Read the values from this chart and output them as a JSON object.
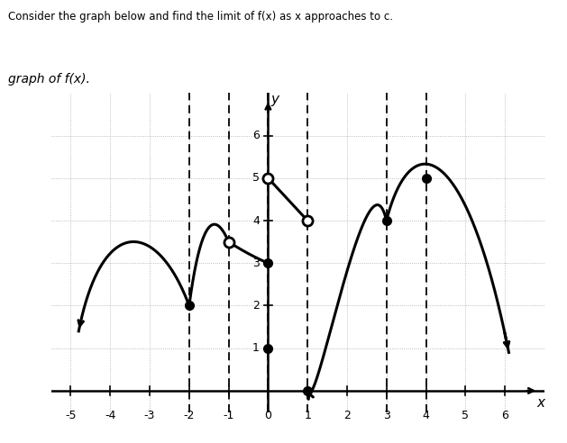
{
  "title_text": "Consider the graph below and find the limit of f(x) as x approaches to c.",
  "subtitle_text": "graph of f(x).",
  "xlim": [
    -5.5,
    7.0
  ],
  "ylim": [
    -0.5,
    7.0
  ],
  "xticks": [
    -5,
    -4,
    -3,
    -2,
    -1,
    0,
    1,
    2,
    3,
    4,
    5,
    6
  ],
  "yticks": [
    1,
    2,
    3,
    4,
    5,
    6
  ],
  "dashed_verticals": [
    -2,
    -1,
    0,
    1,
    3,
    4
  ],
  "open_circles": [
    [
      -1,
      3.5
    ],
    [
      0,
      5
    ],
    [
      1,
      4
    ]
  ],
  "filled_circles": [
    [
      -2,
      2
    ],
    [
      0,
      3
    ],
    [
      0,
      1
    ],
    [
      1,
      0
    ],
    [
      3,
      4
    ],
    [
      4,
      5
    ]
  ],
  "line_color": "#000000",
  "line_width": 2.2,
  "marker_size": 7
}
